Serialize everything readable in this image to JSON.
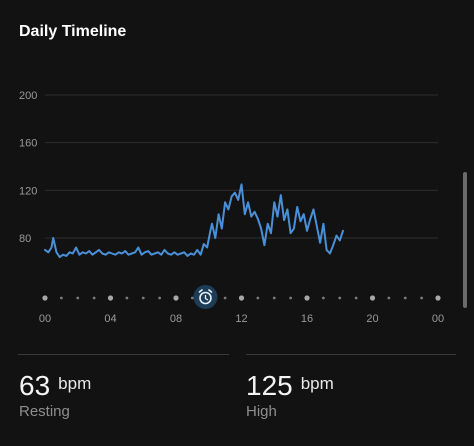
{
  "header": {
    "title": "Daily Timeline"
  },
  "chart_data": {
    "type": "line",
    "title": "Daily Timeline",
    "xlabel": "",
    "ylabel": "",
    "ylim": [
      40,
      210
    ],
    "xlim": [
      0,
      24
    ],
    "yticks": [
      80,
      120,
      160,
      200
    ],
    "xticks": [
      "00",
      "04",
      "08",
      "12",
      "16",
      "20",
      "00"
    ],
    "grid": true,
    "color": "#4a90d9",
    "event_marker": {
      "icon": "alarm-clock-icon",
      "time": 9.8
    },
    "series": [
      {
        "x": [
          0.0,
          0.2,
          0.4,
          0.5,
          0.7,
          0.9,
          1.1,
          1.3,
          1.5,
          1.7,
          1.9,
          2.1,
          2.3,
          2.5,
          2.7,
          2.9,
          3.1,
          3.3,
          3.5,
          3.7,
          3.9,
          4.1,
          4.3,
          4.5,
          4.7,
          4.9,
          5.1,
          5.3,
          5.5,
          5.7,
          5.9,
          6.1,
          6.3,
          6.5,
          6.7,
          6.9,
          7.1,
          7.3,
          7.5,
          7.7,
          7.9,
          8.1,
          8.3,
          8.5,
          8.7,
          8.9,
          9.1,
          9.3,
          9.5,
          9.7,
          9.9,
          10.1,
          10.2,
          10.4,
          10.6,
          10.8,
          11.0,
          11.2,
          11.4,
          11.6,
          11.8,
          12.0,
          12.2,
          12.4,
          12.6,
          12.8,
          13.0,
          13.2,
          13.4,
          13.6,
          13.8,
          14.0,
          14.2,
          14.4,
          14.6,
          14.8,
          15.0,
          15.2,
          15.4,
          15.6,
          15.8,
          16.0,
          16.2,
          16.4,
          16.6,
          16.8,
          17.0,
          17.2,
          17.4,
          17.6,
          17.8,
          18.0,
          18.2
        ],
        "y": [
          70,
          68,
          72,
          80,
          68,
          64,
          66,
          65,
          68,
          67,
          72,
          66,
          68,
          67,
          69,
          66,
          68,
          70,
          67,
          66,
          68,
          67,
          66,
          68,
          67,
          69,
          66,
          67,
          68,
          72,
          66,
          68,
          69,
          66,
          67,
          68,
          66,
          70,
          67,
          66,
          68,
          66,
          67,
          68,
          65,
          67,
          66,
          70,
          66,
          75,
          72,
          86,
          92,
          80,
          100,
          88,
          110,
          104,
          115,
          118,
          112,
          125,
          100,
          110,
          98,
          102,
          96,
          88,
          74,
          92,
          84,
          110,
          98,
          116,
          95,
          104,
          84,
          88,
          106,
          94,
          100,
          86,
          96,
          104,
          90,
          76,
          92,
          70,
          67,
          74,
          82,
          78,
          86
        ]
      }
    ]
  },
  "stats": [
    {
      "value": "63",
      "unit": "bpm",
      "label": "Resting"
    },
    {
      "value": "125",
      "unit": "bpm",
      "label": "High"
    }
  ]
}
